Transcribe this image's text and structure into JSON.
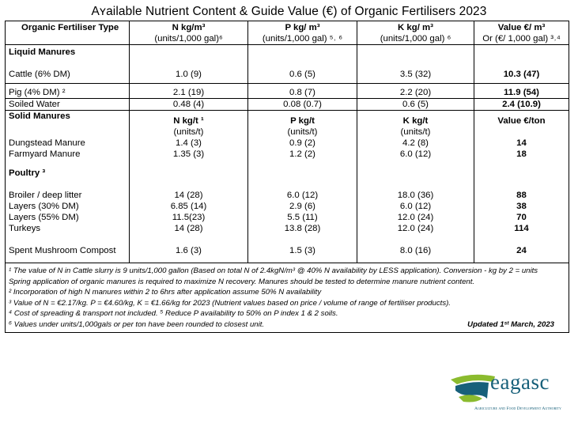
{
  "title": "Aʏailable Nutrient Content & Guide Value (€) of Organic Fertilisers 2023",
  "header": {
    "col1": "Organic Fertiliser Type",
    "col2_main": "N kg/m³",
    "col2_sub": "(units/1,000 gal)⁶",
    "col3_main": "P kg/ m³",
    "col3_sub": "(units/1,000 gal) ⁵˒ ⁶",
    "col4_main": "K kg/ m³",
    "col4_sub": "(units/1,000 gal) ⁶",
    "col5_main": "Value €/ m³",
    "col5_sub": "Or (€/ 1,000 gal) ³˒⁴"
  },
  "liquid": {
    "heading": "Liquid Manures",
    "rows": [
      {
        "name": "Cattle (6% DM)",
        "n": "1.0 (9)",
        "p": "0.6 (5)",
        "k": "3.5 (32)",
        "v": "10.3 (47)"
      },
      {
        "name": "Pig (4% DM) ²",
        "n": "2.1 (19)",
        "p": "0.8 (7)",
        "k": "2.2 (20)",
        "v": "11.9 (54)"
      },
      {
        "name": "Soiled Water",
        "n": "0.48 (4)",
        "p": "0.08 (0.7)",
        "k": "0.6 (5)",
        "v": "2.4 (10.9)"
      }
    ]
  },
  "solid": {
    "heading": "Solid Manures",
    "n_head": "N kg/t ¹",
    "n_unit": "(units/t)",
    "p_head": "P kg/t",
    "p_unit": "(units/t)",
    "k_head": "K kg/t",
    "k_unit": "(units/t)",
    "v_head": "Value €/ton",
    "rows": [
      {
        "name": "Dungstead Manure",
        "n": "1.4 (3)",
        "p": "0.9 (2)",
        "k": "4.2 (8)",
        "v": "14"
      },
      {
        "name": "Farmyard Manure",
        "n": "1.35 (3)",
        "p": "1.2 (2)",
        "k": "6.0 (12)",
        "v": "18"
      }
    ]
  },
  "poultry": {
    "heading": "Poultry ³",
    "rows": [
      {
        "name": "Broiler / deep litter",
        "n": "14 (28)",
        "p": "6.0 (12)",
        "k": "18.0 (36)",
        "v": "88"
      },
      {
        "name": "Layers (30% DM)",
        "n": "6.85 (14)",
        "p": "2.9 (6)",
        "k": "6.0 (12)",
        "v": "38"
      },
      {
        "name": "Layers (55% DM)",
        "n": "11.5(23)",
        "p": "5.5 (11)",
        "k": "12.0 (24)",
        "v": "70"
      },
      {
        "name": "Turkeys",
        "n": "14 (28)",
        "p": "13.8 (28)",
        "k": "12.0 (24)",
        "v": "114"
      }
    ]
  },
  "mushroom": {
    "name": "Spent Mushroom Compost",
    "n": "1.6 (3)",
    "p": "1.5 (3)",
    "k": "8.0 (16)",
    "v": "24"
  },
  "notes": {
    "n1": "¹ The value of N in Cattle slurry is 9 units/1,000 gallon (Based on total N of 2.4kgN/m³ @ 40% N availability by LESS application).  Conversion - kg by 2 = units",
    "n1b": "Spring application of organic manures is required to maximize N recovery.  Manures should be tested to determine manure nutrient content.",
    "n2": "² Incorporation of high N manures within 2 to 6hrs after application assume 50% N availability",
    "n3": "³ Value of N = €2.17/kg. P = €4.60/kg, K = €1.66/kg for 2023 (Nutrient values based on price / volume of range of fertiliser products).",
    "n4": "⁴ Cost of spreading & transport not included.  ⁵ Reduce P availability to 50% on P index 1 & 2 soils.",
    "n6": "⁶ Values under units/1,000gals or per ton have been rounded to closest unit.",
    "updated": "Updated 1ˢᵗ March, 2023"
  },
  "logo": {
    "word": "eagasc",
    "tagline": "Agriculture and Food Development Authority",
    "colors": {
      "green": "#8bbb2e",
      "teal": "#17607a"
    }
  }
}
